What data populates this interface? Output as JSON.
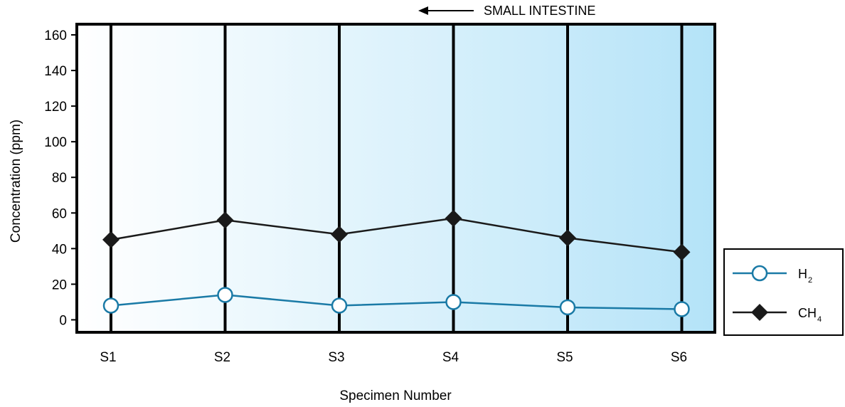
{
  "chart_data": {
    "type": "line",
    "title": "",
    "xlabel": "Specimen Number",
    "ylabel": "Concentration (ppm)",
    "ylim": [
      -7,
      166
    ],
    "yticks": [
      0,
      20,
      40,
      60,
      80,
      100,
      120,
      140,
      160
    ],
    "categories": [
      "S1",
      "S2",
      "S3",
      "S4",
      "S5",
      "S6"
    ],
    "grid": "vertical lines at each specimen",
    "legend_position": "right",
    "annotation": {
      "text": "SMALL INTESTINE",
      "arrow": "left"
    },
    "series": [
      {
        "name": "H",
        "subscript": "2",
        "values": [
          8,
          14,
          8,
          10,
          7,
          6
        ],
        "color": "#1a7aa6",
        "marker": "open-circle"
      },
      {
        "name": "CH",
        "subscript": "4",
        "values": [
          45,
          56,
          48,
          57,
          46,
          38
        ],
        "color": "#1a1a1a",
        "marker": "diamond"
      }
    ],
    "background_gradient": [
      "#ffffff",
      "#b4e3f8"
    ]
  }
}
